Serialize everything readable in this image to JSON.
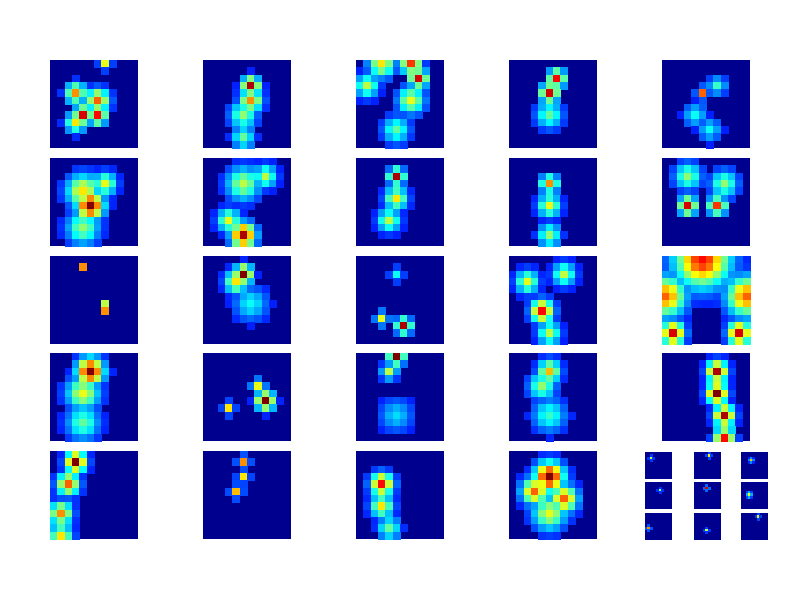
{
  "figure": {
    "background": "#ffffff",
    "grid_rows": 5,
    "grid_cols": 5,
    "colormap": "jet",
    "colormap_stops": [
      "#00008f",
      "#0000ff",
      "#0080ff",
      "#00ffff",
      "#80ff80",
      "#ffff00",
      "#ff8000",
      "#ff0000",
      "#800000"
    ]
  },
  "chart_data": {
    "type": "heatmap",
    "title": "",
    "xlabel": "",
    "ylabel": "",
    "colormap": "jet",
    "value_range": [
      0,
      1
    ],
    "grid": false,
    "axes_visible": false,
    "panel_count": 24,
    "panel_resolution": [
      12,
      12
    ],
    "panels": [
      {
        "row": 0,
        "col": 0,
        "hotspots": [
          {
            "r": 0,
            "c": 7,
            "v": 0.55,
            "s": 0.5
          },
          {
            "r": 4,
            "c": 3,
            "v": 0.7,
            "s": 0.9
          },
          {
            "r": 5,
            "c": 6,
            "v": 0.75,
            "s": 1.0
          },
          {
            "r": 7,
            "c": 4,
            "v": 0.9,
            "s": 0.8
          },
          {
            "r": 7,
            "c": 6,
            "v": 0.85,
            "s": 0.8
          },
          {
            "r": 8,
            "c": 3,
            "v": 0.6,
            "s": 0.9
          }
        ]
      },
      {
        "row": 0,
        "col": 1,
        "hotspots": [
          {
            "r": 3,
            "c": 6,
            "v": 0.95,
            "s": 0.8
          },
          {
            "r": 5,
            "c": 6,
            "v": 0.7,
            "s": 1.0
          },
          {
            "r": 7,
            "c": 5,
            "v": 0.45,
            "s": 1.2
          },
          {
            "r": 10,
            "c": 5,
            "v": 0.4,
            "s": 1.0
          }
        ]
      },
      {
        "row": 0,
        "col": 2,
        "hotspots": [
          {
            "r": 0,
            "c": 3,
            "v": 0.6,
            "s": 1.2
          },
          {
            "r": 0,
            "c": 7,
            "v": 0.8,
            "s": 0.9
          },
          {
            "r": 2,
            "c": 8,
            "v": 0.9,
            "s": 0.8
          },
          {
            "r": 5,
            "c": 7,
            "v": 0.55,
            "s": 1.2
          },
          {
            "r": 3,
            "c": 1,
            "v": 0.5,
            "s": 1.0
          },
          {
            "r": 9,
            "c": 5,
            "v": 0.4,
            "s": 1.2
          }
        ]
      },
      {
        "row": 0,
        "col": 3,
        "hotspots": [
          {
            "r": 2,
            "c": 6,
            "v": 0.85,
            "s": 0.8
          },
          {
            "r": 4,
            "c": 5,
            "v": 0.9,
            "s": 0.8
          },
          {
            "r": 7,
            "c": 5,
            "v": 0.4,
            "s": 1.2
          }
        ]
      },
      {
        "row": 0,
        "col": 4,
        "hotspots": [
          {
            "r": 4,
            "c": 5,
            "v": 0.75,
            "s": 0.5
          },
          {
            "r": 3,
            "c": 7,
            "v": 0.35,
            "s": 0.8
          },
          {
            "r": 7,
            "c": 4,
            "v": 0.3,
            "s": 1.0
          },
          {
            "r": 9,
            "c": 6,
            "v": 0.3,
            "s": 1.0
          }
        ]
      },
      {
        "row": 1,
        "col": 0,
        "hotspots": [
          {
            "r": 6,
            "c": 5,
            "v": 1.0,
            "s": 1.2
          },
          {
            "r": 4,
            "c": 4,
            "v": 0.6,
            "s": 1.5
          },
          {
            "r": 3,
            "c": 7,
            "v": 0.55,
            "s": 1.0
          },
          {
            "r": 9,
            "c": 4,
            "v": 0.45,
            "s": 1.5
          }
        ]
      },
      {
        "row": 1,
        "col": 1,
        "hotspots": [
          {
            "r": 10,
            "c": 5,
            "v": 0.95,
            "s": 1.1
          },
          {
            "r": 8,
            "c": 3,
            "v": 0.55,
            "s": 1.0
          },
          {
            "r": 3,
            "c": 5,
            "v": 0.5,
            "s": 1.5
          },
          {
            "r": 2,
            "c": 8,
            "v": 0.5,
            "s": 1.0
          }
        ]
      },
      {
        "row": 1,
        "col": 2,
        "hotspots": [
          {
            "r": 2,
            "c": 5,
            "v": 0.95,
            "s": 0.7
          },
          {
            "r": 5,
            "c": 5,
            "v": 0.6,
            "s": 1.0
          },
          {
            "r": 8,
            "c": 4,
            "v": 0.5,
            "s": 1.0
          }
        ]
      },
      {
        "row": 1,
        "col": 3,
        "hotspots": [
          {
            "r": 3,
            "c": 5,
            "v": 0.7,
            "s": 0.8
          },
          {
            "r": 6,
            "c": 5,
            "v": 0.55,
            "s": 1.0
          },
          {
            "r": 10,
            "c": 5,
            "v": 0.45,
            "s": 1.0
          }
        ]
      },
      {
        "row": 1,
        "col": 4,
        "hotspots": [
          {
            "r": 6,
            "c": 3,
            "v": 0.9,
            "s": 0.8
          },
          {
            "r": 6,
            "c": 7,
            "v": 0.8,
            "s": 0.8
          },
          {
            "r": 2,
            "c": 3,
            "v": 0.45,
            "s": 1.2
          },
          {
            "r": 3,
            "c": 8,
            "v": 0.45,
            "s": 1.2
          }
        ]
      },
      {
        "row": 2,
        "col": 0,
        "hotspots": [
          {
            "r": 1,
            "c": 4,
            "v": 0.7,
            "s": 0.4
          },
          {
            "r": 6,
            "c": 7,
            "v": 0.5,
            "s": 0.4
          },
          {
            "r": 7,
            "c": 7,
            "v": 0.7,
            "s": 0.4
          }
        ]
      },
      {
        "row": 2,
        "col": 1,
        "hotspots": [
          {
            "r": 2,
            "c": 5,
            "v": 1.0,
            "s": 0.8
          },
          {
            "r": 3,
            "c": 4,
            "v": 0.6,
            "s": 1.0
          },
          {
            "r": 6,
            "c": 6,
            "v": 0.3,
            "s": 1.5
          }
        ]
      },
      {
        "row": 2,
        "col": 2,
        "hotspots": [
          {
            "r": 9,
            "c": 6,
            "v": 0.95,
            "s": 0.7
          },
          {
            "r": 8,
            "c": 3,
            "v": 0.55,
            "s": 0.6
          },
          {
            "r": 2,
            "c": 5,
            "v": 0.3,
            "s": 0.6
          }
        ]
      },
      {
        "row": 2,
        "col": 3,
        "hotspots": [
          {
            "r": 7,
            "c": 4,
            "v": 0.85,
            "s": 1.0
          },
          {
            "r": 3,
            "c": 2,
            "v": 0.55,
            "s": 1.0
          },
          {
            "r": 2,
            "c": 7,
            "v": 0.5,
            "s": 1.0
          },
          {
            "r": 10,
            "c": 5,
            "v": 0.5,
            "s": 1.0
          }
        ]
      },
      {
        "row": 2,
        "col": 4,
        "hotspots": [
          {
            "r": 0,
            "c": 5,
            "v": 0.85,
            "s": 2.5
          },
          {
            "r": 5,
            "c": 0,
            "v": 0.75,
            "s": 1.8
          },
          {
            "r": 5,
            "c": 11,
            "v": 0.75,
            "s": 1.8
          },
          {
            "r": 10,
            "c": 1,
            "v": 0.9,
            "s": 1.0
          },
          {
            "r": 10,
            "c": 10,
            "v": 0.9,
            "s": 1.0
          }
        ]
      },
      {
        "row": 3,
        "col": 0,
        "hotspots": [
          {
            "r": 2,
            "c": 5,
            "v": 1.0,
            "s": 1.2
          },
          {
            "r": 5,
            "c": 4,
            "v": 0.55,
            "s": 1.5
          },
          {
            "r": 9,
            "c": 4,
            "v": 0.4,
            "s": 1.5
          }
        ]
      },
      {
        "row": 3,
        "col": 1,
        "hotspots": [
          {
            "r": 6,
            "c": 8,
            "v": 1.0,
            "s": 0.8
          },
          {
            "r": 4,
            "c": 7,
            "v": 0.55,
            "s": 0.6
          },
          {
            "r": 7,
            "c": 3,
            "v": 0.6,
            "s": 0.5
          }
        ]
      },
      {
        "row": 3,
        "col": 2,
        "hotspots": [
          {
            "r": 0,
            "c": 5,
            "v": 1.0,
            "s": 0.7
          },
          {
            "r": 2,
            "c": 4,
            "v": 0.5,
            "s": 0.7
          },
          {
            "r": 8,
            "c": 5,
            "v": 0.25,
            "s": 1.5
          }
        ]
      },
      {
        "row": 3,
        "col": 3,
        "hotspots": [
          {
            "r": 2,
            "c": 5,
            "v": 0.65,
            "s": 1.0
          },
          {
            "r": 4,
            "c": 4,
            "v": 0.45,
            "s": 1.2
          },
          {
            "r": 8,
            "c": 5,
            "v": 0.35,
            "s": 1.5
          }
        ]
      },
      {
        "row": 3,
        "col": 4,
        "hotspots": [
          {
            "r": 2,
            "c": 7,
            "v": 0.95,
            "s": 0.9
          },
          {
            "r": 5,
            "c": 7,
            "v": 1.0,
            "s": 0.9
          },
          {
            "r": 8,
            "c": 8,
            "v": 0.95,
            "s": 0.9
          },
          {
            "r": 11,
            "c": 8,
            "v": 0.85,
            "s": 0.9
          }
        ]
      },
      {
        "row": 4,
        "col": 0,
        "hotspots": [
          {
            "r": 1,
            "c": 3,
            "v": 1.0,
            "s": 0.9
          },
          {
            "r": 4,
            "c": 2,
            "v": 0.75,
            "s": 1.0
          },
          {
            "r": 8,
            "c": 1,
            "v": 0.7,
            "s": 1.0
          },
          {
            "r": 11,
            "c": 1,
            "v": 0.6,
            "s": 1.0
          }
        ]
      },
      {
        "row": 4,
        "col": 1,
        "hotspots": [
          {
            "r": 1,
            "c": 5,
            "v": 0.7,
            "s": 0.5
          },
          {
            "r": 3,
            "c": 5,
            "v": 0.6,
            "s": 0.5
          },
          {
            "r": 5,
            "c": 4,
            "v": 0.65,
            "s": 0.5
          }
        ]
      },
      {
        "row": 4,
        "col": 2,
        "hotspots": [
          {
            "r": 4,
            "c": 3,
            "v": 0.85,
            "s": 1.0
          },
          {
            "r": 7,
            "c": 3,
            "v": 0.6,
            "s": 1.0
          },
          {
            "r": 10,
            "c": 4,
            "v": 0.4,
            "s": 1.0
          }
        ]
      },
      {
        "row": 4,
        "col": 3,
        "hotspots": [
          {
            "r": 3,
            "c": 5,
            "v": 1.0,
            "s": 1.3
          },
          {
            "r": 5,
            "c": 3,
            "v": 0.75,
            "s": 1.2
          },
          {
            "r": 6,
            "c": 7,
            "v": 0.75,
            "s": 1.2
          },
          {
            "r": 8,
            "c": 5,
            "v": 0.55,
            "s": 1.5
          }
        ]
      }
    ],
    "inset_grid": {
      "rows": 3,
      "cols": 3,
      "panels": [
        {
          "row": 0,
          "col": 0,
          "hotspots": [
            {
              "r": 2,
              "c": 2,
              "v": 0.5,
              "s": 0.5
            }
          ]
        },
        {
          "row": 0,
          "col": 1,
          "hotspots": [
            {
              "r": 1,
              "c": 6,
              "v": 0.6,
              "s": 0.5
            }
          ]
        },
        {
          "row": 0,
          "col": 2,
          "hotspots": [
            {
              "r": 3,
              "c": 4,
              "v": 0.65,
              "s": 0.6
            }
          ]
        },
        {
          "row": 1,
          "col": 0,
          "hotspots": [
            {
              "r": 3,
              "c": 6,
              "v": 0.45,
              "s": 0.5
            }
          ]
        },
        {
          "row": 1,
          "col": 1,
          "hotspots": [
            {
              "r": 2,
              "c": 5,
              "v": 0.9,
              "s": 0.5
            }
          ]
        },
        {
          "row": 1,
          "col": 2,
          "hotspots": [
            {
              "r": 5,
              "c": 3,
              "v": 0.55,
              "s": 0.7
            }
          ]
        },
        {
          "row": 2,
          "col": 0,
          "hotspots": [
            {
              "r": 6,
              "c": 1,
              "v": 0.7,
              "s": 0.5
            }
          ]
        },
        {
          "row": 2,
          "col": 1,
          "hotspots": [
            {
              "r": 7,
              "c": 5,
              "v": 0.5,
              "s": 0.5
            }
          ]
        },
        {
          "row": 2,
          "col": 2,
          "hotspots": [
            {
              "r": 1,
              "c": 7,
              "v": 0.6,
              "s": 0.5
            }
          ]
        }
      ]
    }
  }
}
